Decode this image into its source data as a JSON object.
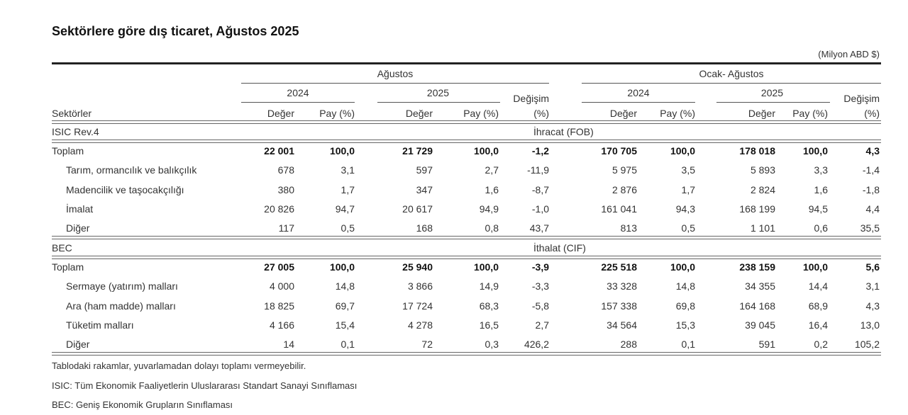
{
  "title": "Sektörlere göre dış ticaret, Ağustos 2025",
  "unit": "(Milyon ABD $)",
  "header": {
    "period1": "Ağustos",
    "period2": "Ocak- Ağustos",
    "year1": "2024",
    "year2": "2025",
    "change": "Değişim",
    "change_unit": "(%)",
    "value": "Değer",
    "share": "Pay (%)",
    "sectors": "Sektörler"
  },
  "sections": [
    {
      "classification": "ISIC  Rev.4",
      "flow": "İhracat (FOB)",
      "rows": [
        {
          "label": "Toplam",
          "bold": true,
          "values": [
            "22 001",
            "100,0",
            "21 729",
            "100,0",
            "-1,2",
            "170 705",
            "100,0",
            "178 018",
            "100,0",
            "4,3"
          ]
        },
        {
          "label": "Tarım, ormancılık ve balıkçılık",
          "values": [
            "678",
            "3,1",
            "597",
            "2,7",
            "-11,9",
            "5 975",
            "3,5",
            "5 893",
            "3,3",
            "-1,4"
          ]
        },
        {
          "label": "Madencilik ve taşocakçılığı",
          "values": [
            "380",
            "1,7",
            "347",
            "1,6",
            "-8,7",
            "2 876",
            "1,7",
            "2 824",
            "1,6",
            "-1,8"
          ]
        },
        {
          "label": "İmalat",
          "values": [
            "20 826",
            "94,7",
            "20 617",
            "94,9",
            "-1,0",
            "161 041",
            "94,3",
            "168 199",
            "94,5",
            "4,4"
          ]
        },
        {
          "label": "Diğer",
          "values": [
            "117",
            "0,5",
            "168",
            "0,8",
            "43,7",
            "813",
            "0,5",
            "1 101",
            "0,6",
            "35,5"
          ]
        }
      ]
    },
    {
      "classification": "BEC",
      "flow": "İthalat (CIF)",
      "rows": [
        {
          "label": "Toplam",
          "bold": true,
          "values": [
            "27 005",
            "100,0",
            "25 940",
            "100,0",
            "-3,9",
            "225 518",
            "100,0",
            "238 159",
            "100,0",
            "5,6"
          ]
        },
        {
          "label": "Sermaye (yatırım) malları",
          "values": [
            "4 000",
            "14,8",
            "3 866",
            "14,9",
            "-3,3",
            "33 328",
            "14,8",
            "34 355",
            "14,4",
            "3,1"
          ]
        },
        {
          "label": "Ara (ham madde) malları",
          "values": [
            "18 825",
            "69,7",
            "17 724",
            "68,3",
            "-5,8",
            "157 338",
            "69,8",
            "164 168",
            "68,9",
            "4,3"
          ]
        },
        {
          "label": "Tüketim malları",
          "values": [
            "4 166",
            "15,4",
            "4 278",
            "16,5",
            "2,7",
            "34 564",
            "15,3",
            "39 045",
            "16,4",
            "13,0"
          ]
        },
        {
          "label": "Diğer",
          "values": [
            "14",
            "0,1",
            "72",
            "0,3",
            "426,2",
            "288",
            "0,1",
            "591",
            "0,2",
            "105,2"
          ]
        }
      ]
    }
  ],
  "notes": [
    "Tablodaki rakamlar, yuvarlamadan dolayı toplamı vermeyebilir.",
    "ISIC: Tüm Ekonomik Faaliyetlerin Uluslararası Standart Sanayi Sınıflaması",
    "BEC: Geniş Ekonomik Grupların Sınıflaması"
  ]
}
